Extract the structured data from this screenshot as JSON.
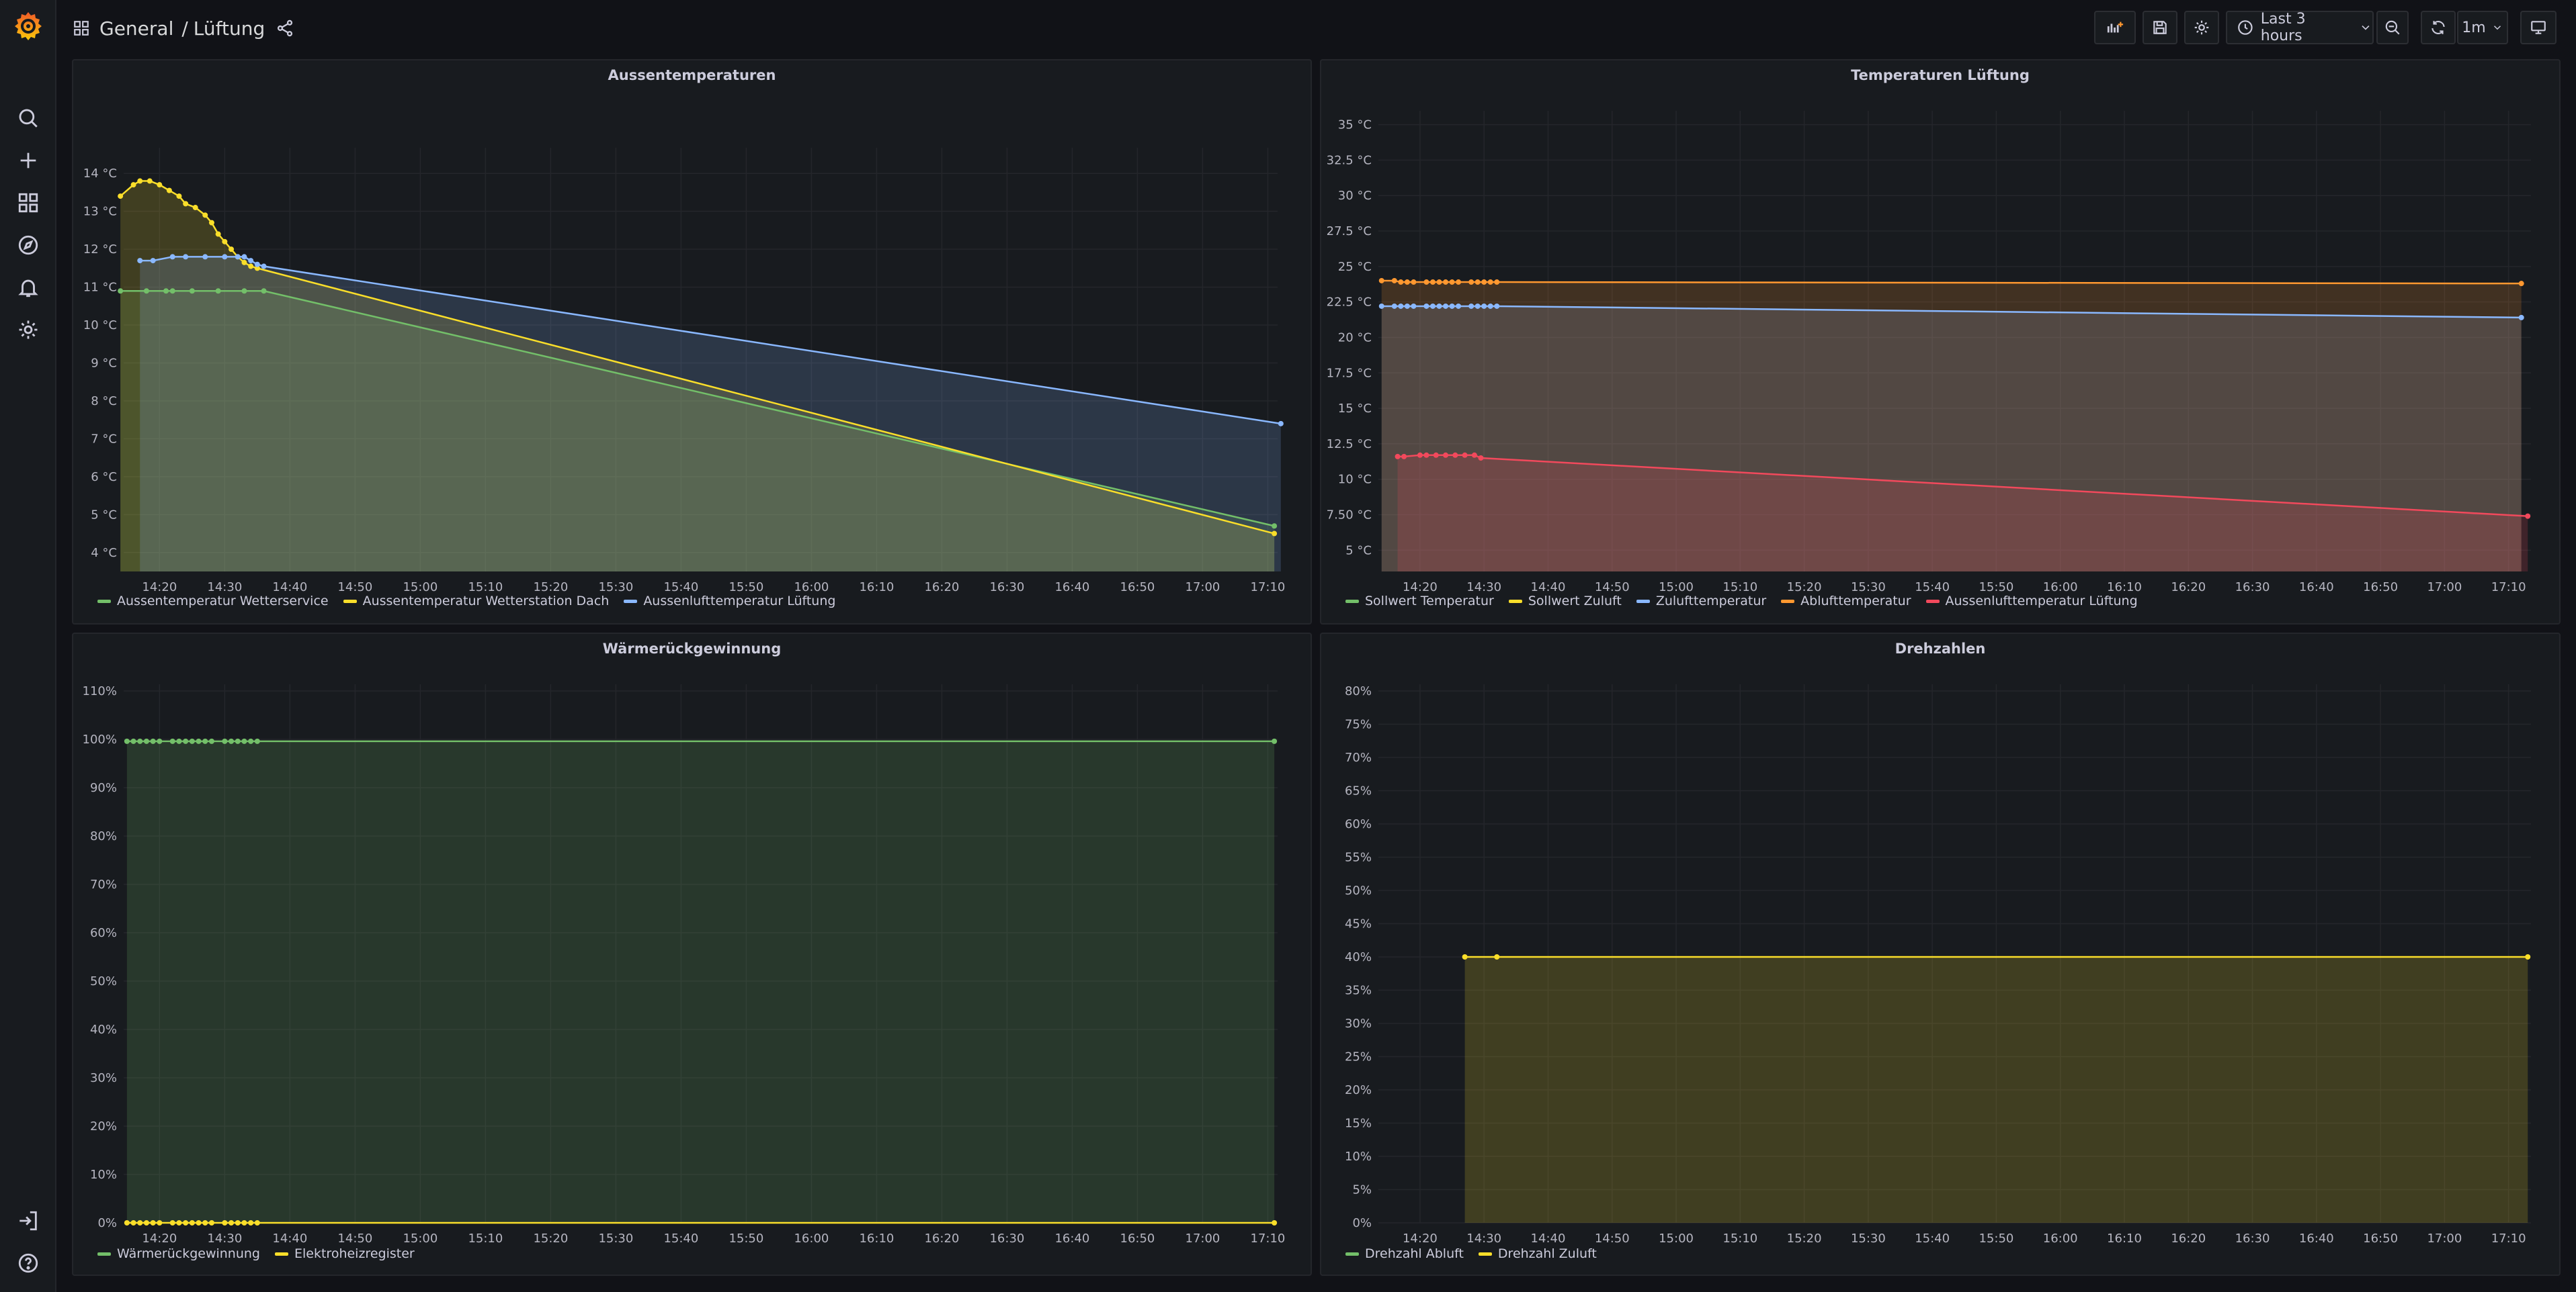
{
  "breadcrumb": {
    "folder": "General",
    "separator": "/",
    "dashboard": "Lüftung"
  },
  "toolbar": {
    "time_range": "Last 3 hours",
    "refresh_interval": "1m"
  },
  "sidebar": {
    "items": [
      "search",
      "create",
      "dashboards",
      "explore",
      "alerting",
      "configuration",
      "sign-in",
      "help"
    ]
  },
  "colors": {
    "green": "#73bf69",
    "yellow": "#fade2a",
    "blue": "#8ab8ff",
    "orange": "#ff9830",
    "red": "#f2495c",
    "white": "#e0e0e0"
  },
  "time_axis": [
    "14:20",
    "14:30",
    "14:40",
    "14:50",
    "15:00",
    "15:10",
    "15:20",
    "15:30",
    "15:40",
    "15:50",
    "16:00",
    "16:10",
    "16:20",
    "16:30",
    "16:40",
    "16:50",
    "17:00",
    "17:10"
  ],
  "panels": [
    {
      "title": "Aussentemperaturen",
      "chart_data": {
        "type": "line",
        "title": "Aussentemperaturen",
        "x_range_min": [
          14.5,
          191.5
        ],
        "ylim": [
          3.5,
          14.5
        ],
        "y_ticks": [
          4,
          5,
          6,
          7,
          8,
          9,
          10,
          11,
          12,
          13,
          14
        ],
        "y_tick_labels": [
          "4 °C",
          "5 °C",
          "6 °C",
          "7 °C",
          "8 °C",
          "9 °C",
          "10 °C",
          "11 °C",
          "12 °C",
          "13 °C",
          "14 °C"
        ],
        "series": [
          {
            "name": "Aussentemperatur Wetterservice",
            "color": "#73bf69",
            "fill": true,
            "points": [
              [
                14,
                10.9
              ],
              [
                18,
                10.9
              ],
              [
                21,
                10.9
              ],
              [
                22,
                10.9
              ],
              [
                25,
                10.9
              ],
              [
                29,
                10.9
              ],
              [
                33,
                10.9
              ],
              [
                36,
                10.9
              ],
              [
                191,
                4.7
              ]
            ]
          },
          {
            "name": "Aussentemperatur Wetterstation Dach",
            "color": "#fade2a",
            "fill": true,
            "points": [
              [
                14,
                13.4
              ],
              [
                16,
                13.7
              ],
              [
                17,
                13.8
              ],
              [
                18.5,
                13.8
              ],
              [
                20,
                13.7
              ],
              [
                21.5,
                13.55
              ],
              [
                23,
                13.4
              ],
              [
                24,
                13.2
              ],
              [
                25.5,
                13.1
              ],
              [
                27,
                12.9
              ],
              [
                28,
                12.7
              ],
              [
                29,
                12.4
              ],
              [
                30,
                12.2
              ],
              [
                31,
                12.0
              ],
              [
                32,
                11.8
              ],
              [
                33,
                11.65
              ],
              [
                34,
                11.55
              ],
              [
                35,
                11.5
              ],
              [
                191,
                4.5
              ]
            ]
          },
          {
            "name": "Aussenlufttemperatur Lüftung",
            "color": "#8ab8ff",
            "fill": true,
            "points": [
              [
                17,
                11.7
              ],
              [
                19,
                11.7
              ],
              [
                22,
                11.8
              ],
              [
                24,
                11.8
              ],
              [
                27,
                11.8
              ],
              [
                30,
                11.8
              ],
              [
                32,
                11.8
              ],
              [
                33,
                11.8
              ],
              [
                34,
                11.7
              ],
              [
                35,
                11.6
              ],
              [
                36,
                11.55
              ],
              [
                192,
                7.4
              ]
            ]
          }
        ]
      }
    },
    {
      "title": "Temperaturen Lüftung",
      "chart_data": {
        "type": "line",
        "title": "Temperaturen Lüftung",
        "x_range_min": [
          13.5,
          193.5
        ],
        "ylim": [
          3.5,
          35.5
        ],
        "y_ticks": [
          5,
          7.5,
          10,
          12.5,
          15,
          17.5,
          20,
          22.5,
          25,
          27.5,
          30,
          32.5,
          35
        ],
        "y_tick_labels": [
          "5 °C",
          "7.50 °C",
          "10 °C",
          "12.5 °C",
          "15 °C",
          "17.5 °C",
          "20 °C",
          "22.5 °C",
          "25 °C",
          "27.5 °C",
          "30 °C",
          "32.5 °C",
          "35 °C"
        ],
        "series": [
          {
            "name": "Sollwert Temperatur",
            "color": "#73bf69",
            "fill": false,
            "points": []
          },
          {
            "name": "Sollwert Zuluft",
            "color": "#fade2a",
            "fill": false,
            "points": []
          },
          {
            "name": "Zulufttemperatur",
            "color": "#8ab8ff",
            "fill": true,
            "points": [
              [
                14,
                22.2
              ],
              [
                16,
                22.2
              ],
              [
                17,
                22.2
              ],
              [
                18,
                22.2
              ],
              [
                19,
                22.2
              ],
              [
                21,
                22.2
              ],
              [
                22,
                22.2
              ],
              [
                23,
                22.2
              ],
              [
                24,
                22.2
              ],
              [
                25,
                22.2
              ],
              [
                26,
                22.2
              ],
              [
                28,
                22.2
              ],
              [
                29,
                22.2
              ],
              [
                30,
                22.2
              ],
              [
                31,
                22.2
              ],
              [
                32,
                22.2
              ],
              [
                192,
                21.4
              ]
            ]
          },
          {
            "name": "Ablufttemperatur",
            "color": "#ff9830",
            "fill": true,
            "points": [
              [
                14,
                24.0
              ],
              [
                16,
                24.0
              ],
              [
                17,
                23.9
              ],
              [
                18,
                23.9
              ],
              [
                19,
                23.9
              ],
              [
                21,
                23.9
              ],
              [
                22,
                23.9
              ],
              [
                23,
                23.9
              ],
              [
                24,
                23.9
              ],
              [
                25,
                23.9
              ],
              [
                26,
                23.9
              ],
              [
                28,
                23.9
              ],
              [
                29,
                23.9
              ],
              [
                30,
                23.9
              ],
              [
                31,
                23.9
              ],
              [
                32,
                23.9
              ],
              [
                192,
                23.8
              ]
            ]
          },
          {
            "name": "Aussenlufttemperatur Lüftung",
            "color": "#f2495c",
            "fill": true,
            "points": [
              [
                16.5,
                11.6
              ],
              [
                17.5,
                11.6
              ],
              [
                20,
                11.7
              ],
              [
                21,
                11.7
              ],
              [
                22.5,
                11.7
              ],
              [
                24,
                11.7
              ],
              [
                25.5,
                11.7
              ],
              [
                27,
                11.7
              ],
              [
                28.5,
                11.7
              ],
              [
                29.5,
                11.5
              ],
              [
                193,
                7.4
              ]
            ]
          }
        ]
      }
    },
    {
      "title": "Wärmerückgewinnung",
      "chart_data": {
        "type": "line",
        "title": "Wärmerückgewinnung",
        "x_range_min": [
          14.5,
          191.5
        ],
        "ylim": [
          0,
          110
        ],
        "y_ticks": [
          0,
          10,
          20,
          30,
          40,
          50,
          60,
          70,
          80,
          90,
          100,
          110
        ],
        "y_tick_labels": [
          "0%",
          "10%",
          "20%",
          "30%",
          "40%",
          "50%",
          "60%",
          "70%",
          "80%",
          "90%",
          "100%",
          "110%"
        ],
        "series": [
          {
            "name": "Wärmerückgewinnung",
            "color": "#73bf69",
            "fill": true,
            "points": [
              [
                15,
                99.6
              ],
              [
                16,
                99.6
              ],
              [
                17,
                99.6
              ],
              [
                18,
                99.6
              ],
              [
                19,
                99.6
              ],
              [
                20,
                99.6
              ],
              [
                22,
                99.6
              ],
              [
                23,
                99.6
              ],
              [
                24,
                99.6
              ],
              [
                25,
                99.6
              ],
              [
                26,
                99.6
              ],
              [
                27,
                99.6
              ],
              [
                28,
                99.6
              ],
              [
                30,
                99.6
              ],
              [
                31,
                99.6
              ],
              [
                32,
                99.6
              ],
              [
                33,
                99.6
              ],
              [
                34,
                99.6
              ],
              [
                35,
                99.6
              ],
              [
                191,
                99.6
              ]
            ]
          },
          {
            "name": "Elektroheizregister",
            "color": "#fade2a",
            "fill": true,
            "points": [
              [
                15,
                0
              ],
              [
                16,
                0
              ],
              [
                17,
                0
              ],
              [
                18,
                0
              ],
              [
                19,
                0
              ],
              [
                20,
                0
              ],
              [
                22,
                0
              ],
              [
                23,
                0
              ],
              [
                24,
                0
              ],
              [
                25,
                0
              ],
              [
                26,
                0
              ],
              [
                27,
                0
              ],
              [
                28,
                0
              ],
              [
                30,
                0
              ],
              [
                31,
                0
              ],
              [
                32,
                0
              ],
              [
                33,
                0
              ],
              [
                34,
                0
              ],
              [
                35,
                0
              ],
              [
                191,
                0
              ]
            ]
          }
        ]
      }
    },
    {
      "title": "Drehzahlen",
      "chart_data": {
        "type": "line",
        "title": "Drehzahlen",
        "x_range_min": [
          13.5,
          193.5
        ],
        "ylim": [
          0,
          80
        ],
        "y_ticks": [
          0,
          5,
          10,
          15,
          20,
          25,
          30,
          35,
          40,
          45,
          50,
          55,
          60,
          65,
          70,
          75,
          80
        ],
        "y_tick_labels": [
          "0%",
          "5%",
          "10%",
          "15%",
          "20%",
          "25%",
          "30%",
          "35%",
          "40%",
          "45%",
          "50%",
          "55%",
          "60%",
          "65%",
          "70%",
          "75%",
          "80%"
        ],
        "series": [
          {
            "name": "Drehzahl Abluft",
            "color": "#73bf69",
            "fill": true,
            "points": []
          },
          {
            "name": "Drehzahl Zuluft",
            "color": "#fade2a",
            "fill": true,
            "points": [
              [
                27,
                40
              ],
              [
                32,
                40
              ],
              [
                193,
                40
              ]
            ]
          }
        ]
      }
    }
  ]
}
